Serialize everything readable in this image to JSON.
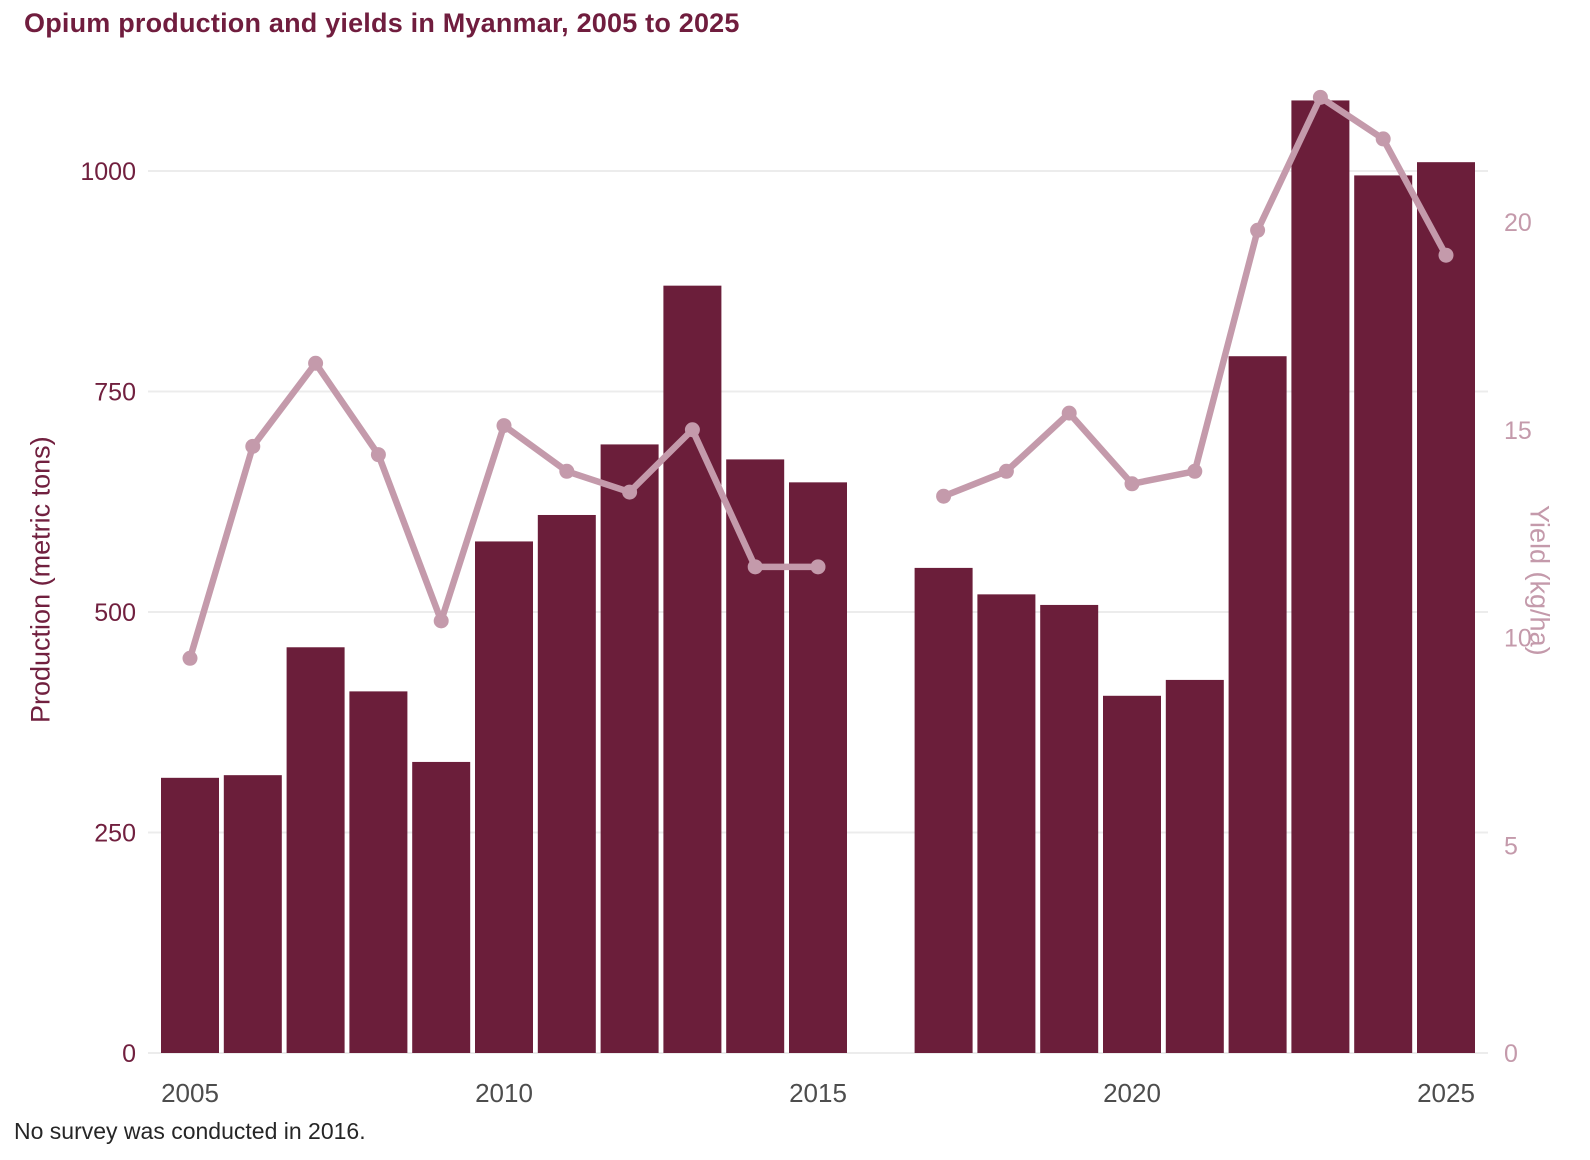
{
  "chart_data": {
    "type": "combo",
    "title": "Opium production and yields in Myanmar, 2005 to 2025",
    "footnote": "No survey was conducted in 2016.",
    "x": [
      2005,
      2006,
      2007,
      2008,
      2009,
      2010,
      2011,
      2012,
      2013,
      2014,
      2015,
      2016,
      2017,
      2018,
      2019,
      2020,
      2021,
      2022,
      2023,
      2024,
      2025
    ],
    "x_tick_labels": [
      "2005",
      "2010",
      "2015",
      "2020",
      "2025"
    ],
    "left_axis": {
      "label": "Production (metric tons)",
      "ticks": [
        0,
        250,
        500,
        750,
        1000
      ],
      "range": [
        0,
        1125
      ],
      "color": "#71203f"
    },
    "right_axis": {
      "label": "Yield (kg/ha)",
      "ticks": [
        0,
        5,
        10,
        15,
        20
      ],
      "range": [
        0,
        23.9
      ],
      "color": "#c49aab"
    },
    "grid": true,
    "legend": "none",
    "background": "#ffffff",
    "gridline_color": "#ececec",
    "x_tick_color": "#4d4d4d",
    "series": [
      {
        "name": "Production",
        "type": "bar",
        "axis": "left",
        "unit": "metric tons",
        "color": "#6b1e3a",
        "values": [
          312,
          315,
          460,
          410,
          330,
          580,
          610,
          690,
          870,
          673,
          647,
          null,
          550,
          520,
          508,
          405,
          423,
          790,
          1080,
          995,
          1010
        ]
      },
      {
        "name": "Yield",
        "type": "line",
        "axis": "right",
        "unit": "kg/ha",
        "color": "#c49aab",
        "values": [
          9.5,
          14.6,
          16.6,
          14.4,
          10.4,
          15.1,
          14.0,
          13.5,
          15.0,
          11.7,
          11.7,
          null,
          13.4,
          14.0,
          15.4,
          13.7,
          14.0,
          19.8,
          23.0,
          22.0,
          19.2
        ]
      }
    ]
  }
}
